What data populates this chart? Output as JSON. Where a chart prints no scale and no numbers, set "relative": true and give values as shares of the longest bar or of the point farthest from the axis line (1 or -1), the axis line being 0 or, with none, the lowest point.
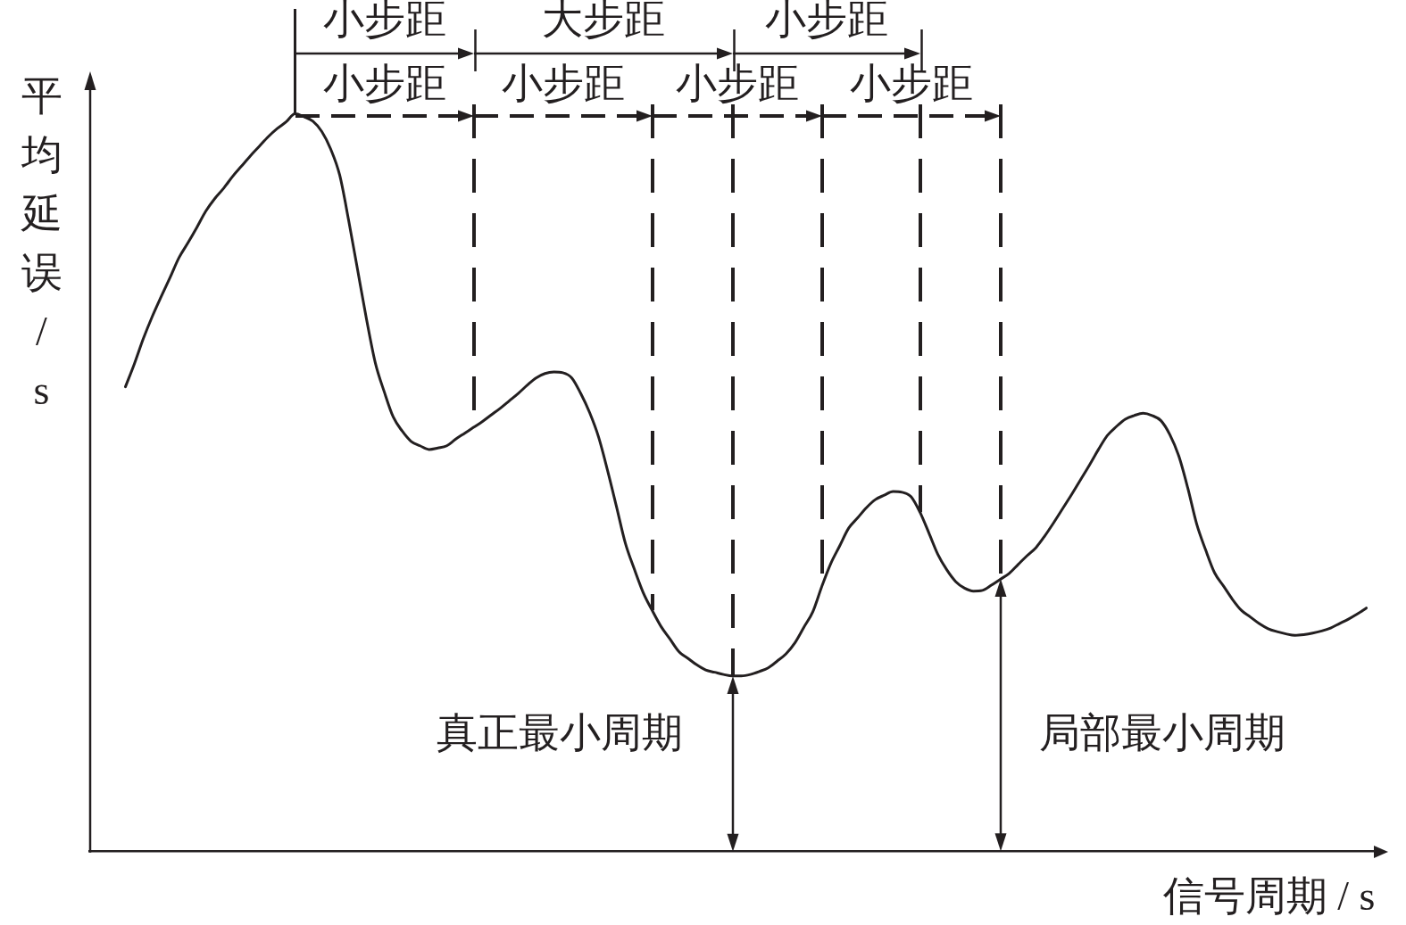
{
  "chart_data": {
    "type": "line",
    "relative": true,
    "xlabel": "信号周期 / s",
    "ylabel": "平均延误 / s",
    "annotations": [
      "小步距",
      "大步距",
      "小步距",
      "小步距",
      "小步距",
      "小步距",
      "小步距",
      "真正最小周期",
      "局部最小周期"
    ],
    "categories": [
      null,
      null,
      null,
      null,
      null,
      null,
      null,
      null,
      null,
      null,
      null,
      null,
      null,
      null,
      null,
      null,
      null,
      null,
      null,
      null,
      null,
      null,
      null,
      null,
      null,
      null,
      null,
      null,
      null,
      null,
      null,
      null,
      null,
      null,
      null,
      null,
      null,
      null,
      null,
      null,
      null,
      null,
      null,
      null,
      null,
      null,
      null,
      null,
      null,
      null,
      null,
      null,
      null,
      null,
      null,
      null,
      null,
      null,
      null,
      null,
      null,
      null,
      null,
      null,
      null,
      null,
      null,
      null,
      null,
      null,
      null,
      null,
      null,
      null,
      null,
      null,
      null,
      null,
      null,
      null,
      null,
      null,
      null,
      null,
      null,
      null,
      null,
      null,
      null,
      null,
      null,
      null,
      null,
      null,
      null,
      null,
      null,
      null,
      null,
      null,
      null,
      null,
      null,
      null,
      null,
      null,
      null,
      null,
      null,
      null,
      null,
      null,
      null,
      null,
      null,
      null,
      null,
      null,
      null,
      null,
      null,
      null,
      null,
      null,
      null,
      null,
      null,
      null,
      null,
      null,
      null,
      null,
      null,
      null,
      null,
      null,
      null,
      null,
      null,
      null,
      null,
      null,
      null,
      null,
      null
    ],
    "values": [
      null,
      null,
      null,
      null,
      0.63,
      0.661,
      0.695,
      0.725,
      0.752,
      0.778,
      0.805,
      0.825,
      0.846,
      0.868,
      0.885,
      0.899,
      0.915,
      0.929,
      0.943,
      0.956,
      0.969,
      0.98,
      0.989,
      1,
      0.996,
      0.99,
      0.976,
      0.952,
      0.917,
      0.856,
      0.789,
      0.722,
      0.662,
      0.623,
      0.589,
      0.57,
      0.556,
      0.55,
      0.545,
      0.547,
      0.55,
      0.559,
      0.567,
      0.575,
      0.583,
      0.592,
      0.601,
      0.611,
      0.621,
      0.632,
      0.642,
      0.648,
      0.65,
      0.649,
      0.642,
      0.621,
      0.595,
      0.562,
      0.517,
      0.468,
      0.418,
      0.383,
      0.351,
      0.327,
      0.305,
      0.288,
      0.271,
      0.262,
      0.253,
      0.246,
      0.243,
      0.24,
      0.238,
      0.238,
      0.24,
      0.244,
      0.249,
      0.258,
      0.268,
      0.283,
      0.304,
      0.325,
      0.359,
      0.39,
      0.414,
      0.438,
      0.452,
      0.466,
      0.477,
      0.483,
      0.488,
      0.487,
      0.481,
      0.46,
      0.432,
      0.403,
      0.382,
      0.366,
      0.357,
      0.353,
      0.354,
      0.361,
      0.369,
      0.377,
      0.389,
      0.401,
      0.412,
      0.428,
      0.446,
      0.465,
      0.484,
      0.504,
      0.524,
      0.545,
      0.564,
      0.576,
      0.586,
      0.591,
      0.594,
      0.591,
      0.584,
      0.565,
      0.536,
      0.493,
      0.444,
      0.409,
      0.378,
      0.36,
      0.342,
      0.327,
      0.318,
      0.309,
      0.302,
      0.298,
      0.295,
      0.293,
      0.294,
      0.296,
      0.299,
      0.303,
      0.309,
      0.315,
      0.322,
      0.33,
      null
    ],
    "color": "#231f20"
  }
}
